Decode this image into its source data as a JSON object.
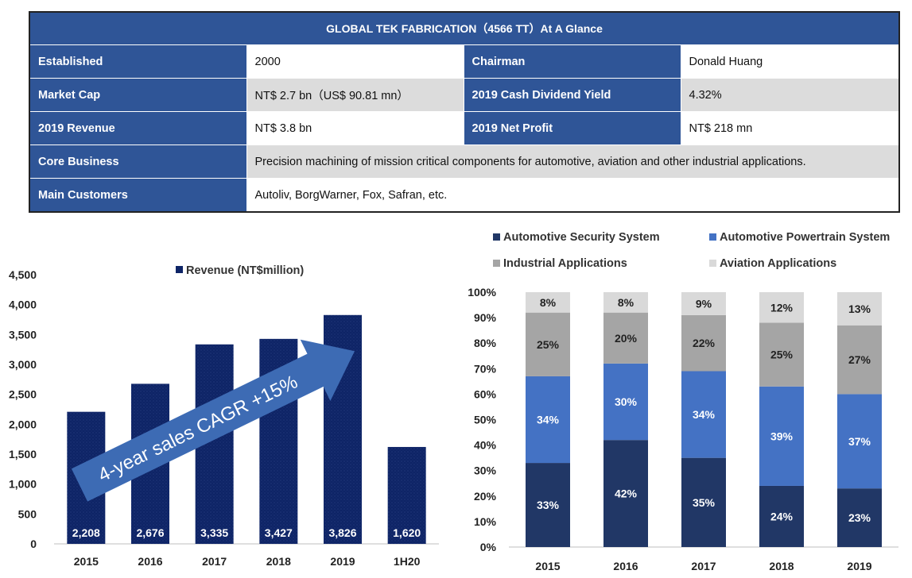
{
  "glance": {
    "title": "GLOBAL TEK FABRICATION（4566 TT）At A Glance",
    "rows": [
      {
        "l1": "Established",
        "v1": "2000",
        "l2": "Chairman",
        "v2": "Donald Huang"
      },
      {
        "l1": "Market Cap",
        "v1": "NT$ 2.7 bn（US$ 90.81 mn）",
        "l2": "2019 Cash Dividend Yield",
        "v2": "4.32%"
      },
      {
        "l1": "2019 Revenue",
        "v1": "NT$ 3.8 bn",
        "l2": "2019 Net Profit",
        "v2": "NT$ 218 mn"
      }
    ],
    "core_business_label": "Core Business",
    "core_business": "Precision machining of mission critical components for automotive, aviation and other industrial applications.",
    "main_customers_label": "Main Customers",
    "main_customers": "Autoliv, BorgWarner, Fox, Safran, etc."
  },
  "colors": {
    "header": "#2f5597",
    "revenue_bar": "#0e2466",
    "security": "#213766",
    "powertrain": "#4472c4",
    "industrial": "#a5a5a5",
    "aviation": "#d9d9d9",
    "arrow": "#3d6bb4"
  },
  "chart_data": [
    {
      "type": "bar",
      "categories": [
        "2015",
        "2016",
        "2017",
        "2018",
        "2019",
        "1H20"
      ],
      "series": [
        {
          "name": "Revenue (NT$million)",
          "values": [
            2208,
            2676,
            3335,
            3427,
            3826,
            1620
          ]
        }
      ],
      "data_labels": [
        "2,208",
        "2,676",
        "3,335",
        "3,427",
        "3,826",
        "1,620"
      ],
      "y_ticks": [
        "0",
        "500",
        "1,000",
        "1,500",
        "2,000",
        "2,500",
        "3,000",
        "3,500",
        "4,000",
        "4,500"
      ],
      "ylim": [
        0,
        4500
      ],
      "legend": "top",
      "annotation": "4-year sales CAGR +15%",
      "grid": false
    },
    {
      "type": "bar",
      "stacked": true,
      "categories": [
        "2015",
        "2016",
        "2017",
        "2018",
        "2019"
      ],
      "series": [
        {
          "name": "Automotive Security System",
          "values": [
            33,
            42,
            35,
            24,
            23
          ]
        },
        {
          "name": "Automotive Powertrain System",
          "values": [
            34,
            30,
            34,
            39,
            37
          ]
        },
        {
          "name": "Industrial Applications",
          "values": [
            25,
            20,
            22,
            25,
            27
          ]
        },
        {
          "name": "Aviation Applications",
          "values": [
            8,
            8,
            9,
            12,
            13
          ]
        }
      ],
      "y_ticks": [
        "0%",
        "10%",
        "20%",
        "30%",
        "40%",
        "50%",
        "60%",
        "70%",
        "80%",
        "90%",
        "100%"
      ],
      "ylim": [
        0,
        100
      ],
      "legend": "top",
      "grid": false
    }
  ]
}
